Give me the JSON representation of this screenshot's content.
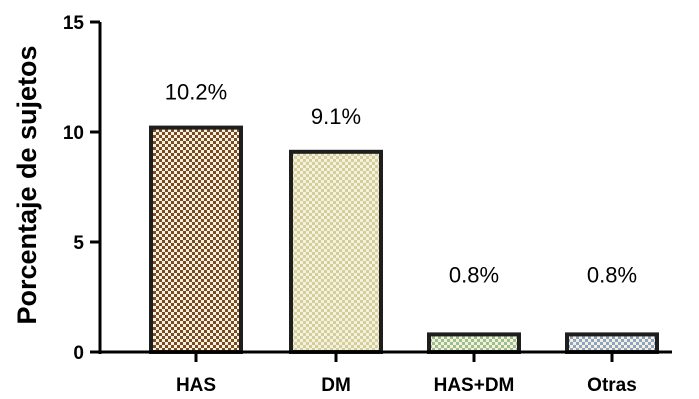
{
  "chart_data": {
    "type": "bar",
    "title": "",
    "xlabel": "",
    "ylabel": "Porcentaje de sujetos",
    "ylim": [
      0,
      15
    ],
    "yticks": [
      0,
      5,
      10,
      15
    ],
    "grid": false,
    "categories": [
      "HAS",
      "DM",
      "HAS+DM",
      "Otras"
    ],
    "values": [
      10.2,
      9.1,
      0.8,
      0.8
    ],
    "data_labels": [
      "10.2%",
      "9.1%",
      "0.8%",
      "0.8%"
    ],
    "bar_colors": [
      "#7a4a22",
      "#d4cf9a",
      "#9cbf8c",
      "#8ea3c4"
    ],
    "bar_pattern": "checkered",
    "bar_outline_color": "#1e1e1e"
  }
}
